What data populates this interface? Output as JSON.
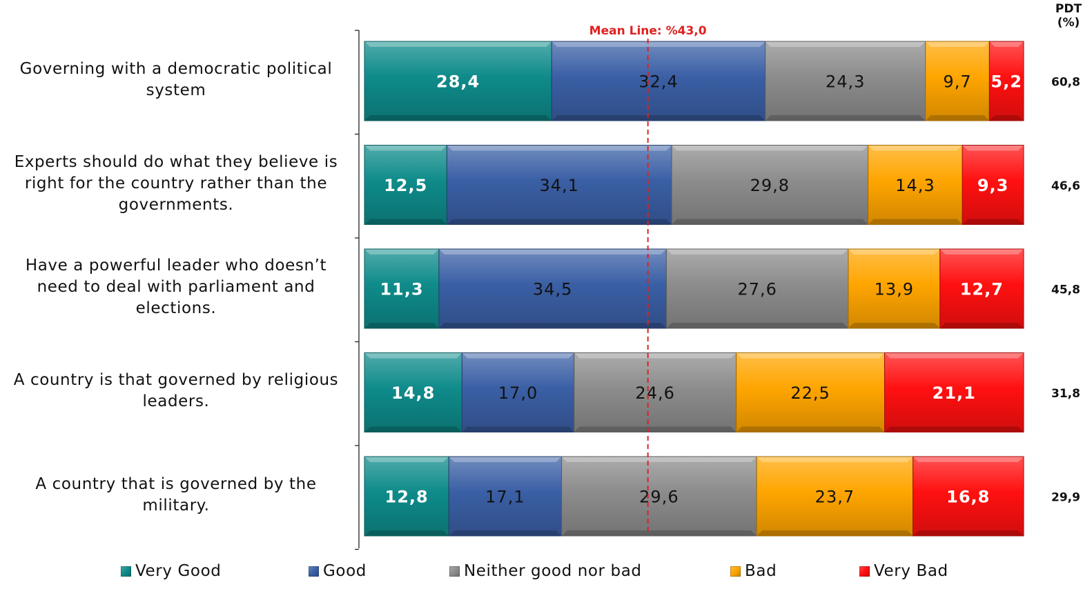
{
  "chart_data": {
    "type": "bar",
    "orientation": "horizontal",
    "stacked": true,
    "categories": [
      "Governing with a democratic political system",
      "Experts should do what they believe is right for the country rather than the governments.",
      "Have a powerful leader who doesn’t need to deal with parliament and elections.",
      "A country is that governed by religious leaders.",
      "A country that is governed by the military."
    ],
    "category_lines": [
      [
        "Governing with a democratic political",
        "system"
      ],
      [
        "Experts should do what they believe is",
        "right for the country rather than the",
        "governments."
      ],
      [
        "Have a powerful leader who doesn’t",
        "need to deal with parliament and",
        "elections."
      ],
      [
        "A country is that governed by religious",
        "leaders."
      ],
      [
        "A country that is governed by the",
        "military."
      ]
    ],
    "series": [
      {
        "name": "Very Good",
        "color": "#0E8B8A",
        "values": [
          "28,4",
          "12,5",
          "11,3",
          "14,8",
          "12,8"
        ]
      },
      {
        "name": "Good",
        "color": "#3A5FA5",
        "values": [
          "32,4",
          "34,1",
          "34,5",
          "17,0",
          "17,1"
        ]
      },
      {
        "name": "Neither good nor bad",
        "color": "#8C8C8C",
        "values": [
          "24,3",
          "29,8",
          "27,6",
          "24,6",
          "29,6"
        ]
      },
      {
        "name": "Bad",
        "color": "#FFA500",
        "values": [
          "9,7",
          "14,3",
          "13,9",
          "22,5",
          "23,7"
        ]
      },
      {
        "name": "Very Bad",
        "color": "#FF1010",
        "values": [
          "5,2",
          "9,3",
          "12,7",
          "21,1",
          "16,8"
        ]
      }
    ],
    "bold_labels": [
      "Very Good",
      "Very Bad"
    ],
    "xlim": [
      0,
      100
    ],
    "mean_line": {
      "value": 43.0,
      "label": "Mean Line: %43,0",
      "color": "#E02020"
    },
    "pdt": {
      "header": [
        "PDT",
        "(%)"
      ],
      "values": [
        "60,8",
        "46,6",
        "45,8",
        "31,8",
        "29,9"
      ]
    },
    "legend": {
      "position": "bottom"
    },
    "grid": false
  }
}
